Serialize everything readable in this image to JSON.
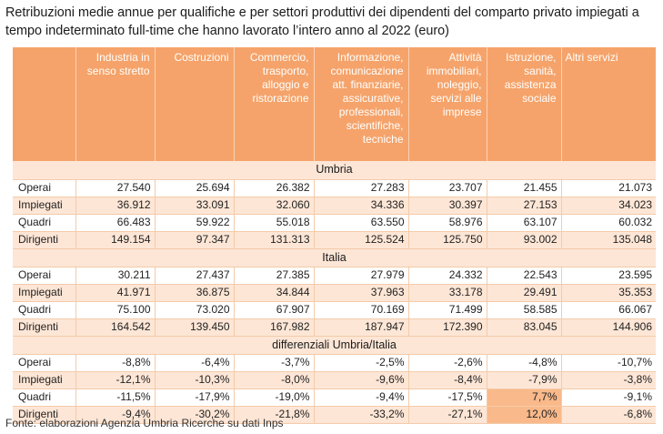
{
  "title": "Retribuzioni medie annue per qualifiche e per settori produttivi dei dipendenti del comparto privato impiegati a tempo indeterminato full-time che hanno lavorato l’intero anno al 2022 (euro)",
  "columns": [
    "",
    "Industria in senso stretto",
    "Costruzioni",
    "Commercio, trasporto, alloggio e ristorazione",
    "Informazione, comunicazione att. finanziarie, assicurative, professionali, scientifiche, tecniche",
    "Attività immobiliari, noleggio, servizi alle imprese",
    "Istruzione, sanità, assistenza sociale",
    "Altri servizi"
  ],
  "sections": [
    {
      "label": "Umbria",
      "rows": [
        {
          "label": "Operai",
          "values": [
            "27.540",
            "25.694",
            "26.382",
            "27.283",
            "23.707",
            "21.455",
            "21.073"
          ]
        },
        {
          "label": "Impiegati",
          "values": [
            "36.912",
            "33.091",
            "32.060",
            "34.336",
            "30.397",
            "27.153",
            "34.023"
          ]
        },
        {
          "label": "Quadri",
          "values": [
            "66.483",
            "59.922",
            "55.018",
            "63.550",
            "58.976",
            "63.107",
            "60.032"
          ]
        },
        {
          "label": "Dirigenti",
          "values": [
            "149.154",
            "97.347",
            "131.313",
            "125.524",
            "125.750",
            "93.002",
            "135.048"
          ]
        }
      ]
    },
    {
      "label": "Italia",
      "rows": [
        {
          "label": "Operai",
          "values": [
            "30.211",
            "27.437",
            "27.385",
            "27.979",
            "24.332",
            "22.543",
            "23.595"
          ]
        },
        {
          "label": "Impiegati",
          "values": [
            "41.971",
            "36.875",
            "34.844",
            "37.963",
            "33.178",
            "29.491",
            "35.353"
          ]
        },
        {
          "label": "Quadri",
          "values": [
            "75.100",
            "73.020",
            "67.907",
            "70.169",
            "71.499",
            "58.585",
            "66.067"
          ]
        },
        {
          "label": "Dirigenti",
          "values": [
            "164.542",
            "139.450",
            "167.982",
            "187.947",
            "172.390",
            "83.045",
            "144.906"
          ]
        }
      ]
    },
    {
      "label": "differenziali Umbria/Italia",
      "rows": [
        {
          "label": "Operai",
          "values": [
            "-8,8%",
            "-6,4%",
            "-3,7%",
            "-2,5%",
            "-2,6%",
            "-4,8%",
            "-10,7%"
          ]
        },
        {
          "label": "Impiegati",
          "values": [
            "-12,1%",
            "-10,3%",
            "-8,0%",
            "-9,6%",
            "-8,4%",
            "-7,9%",
            "-3,8%"
          ]
        },
        {
          "label": "Quadri",
          "values": [
            "-11,5%",
            "-17,9%",
            "-19,0%",
            "-9,4%",
            "-17,5%",
            "7,7%",
            "-9,1%"
          ]
        },
        {
          "label": "Dirigenti",
          "values": [
            "-9,4%",
            "-30,2%",
            "-21,8%",
            "-33,2%",
            "-27,1%",
            "12,0%",
            "-6,8%"
          ]
        }
      ]
    }
  ],
  "highlighted_cells": [
    {
      "section": 2,
      "row": 2,
      "col": 5
    },
    {
      "section": 2,
      "row": 3,
      "col": 5
    }
  ],
  "source": "Fonte: elaborazioni Agenzia Umbria Ricerche su dati Inps",
  "colors": {
    "header_bg": "#f5a36a",
    "header_text": "#ffffff",
    "alt_row_bg": "#fde6d6",
    "highlight_bg": "#f9b98a",
    "grid_line": "#f3cba9"
  }
}
